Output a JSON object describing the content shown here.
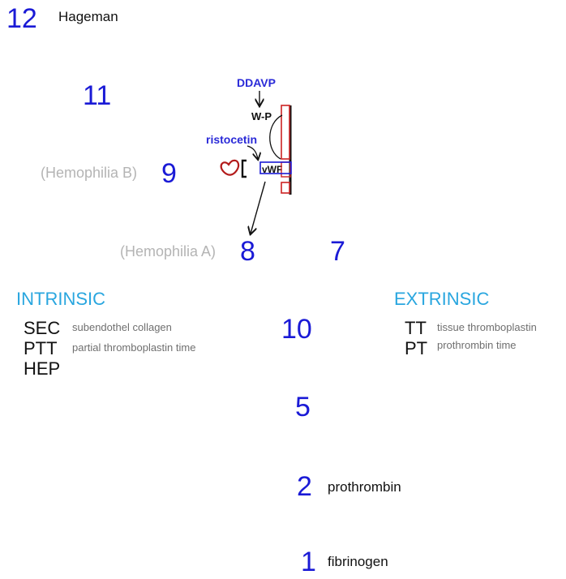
{
  "factors": {
    "f12": "12",
    "f11": "11",
    "f9": "9",
    "f8": "8",
    "f7": "7",
    "f10": "10",
    "f5": "5",
    "f2": "2",
    "f1": "1"
  },
  "labels": {
    "hageman": "Hageman",
    "hemophilia_b": "(Hemophilia B)",
    "hemophilia_a": "(Hemophilia A)",
    "prothrombin": "prothrombin",
    "fibrinogen": "fibrinogen",
    "ddavp": "DDAVP",
    "wp": "W-P",
    "ristocetin": "ristocetin",
    "vwf": "vWF"
  },
  "intrinsic": {
    "heading": "INTRINSIC",
    "rows": [
      {
        "abbr": "SEC",
        "desc": "subendothel collagen"
      },
      {
        "abbr": "PTT",
        "desc": "partial thromboplastin time"
      },
      {
        "abbr": "HEP",
        "desc": ""
      }
    ]
  },
  "extrinsic": {
    "heading": "EXTRINSIC",
    "rows": [
      {
        "abbr": "TT",
        "desc": "tissue thromboplastin"
      },
      {
        "abbr": "PT",
        "desc": "prothrombin time"
      }
    ]
  },
  "colors": {
    "factor_blue": "#1a1ad6",
    "heading_cyan": "#29a6df",
    "hemophilia_gray": "#b4b4b4",
    "vessel_red": "#cc2222",
    "platelet_red": "#b31b1b"
  }
}
